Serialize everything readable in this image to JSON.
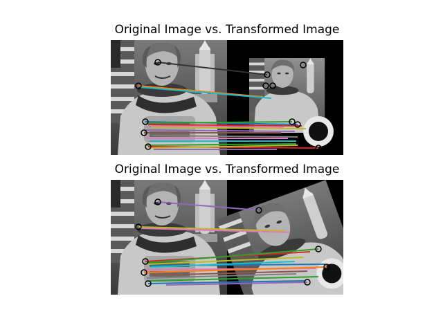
{
  "figure": {
    "panels": [
      {
        "title": "Original Image vs. Transformed Image",
        "transform": "scaled and shifted copy on black background"
      },
      {
        "title": "Original Image vs. Transformed Image",
        "transform": "rotated copy on black background"
      }
    ]
  },
  "colors": {
    "background": "#ffffff",
    "image_black": "#000000",
    "match_lines": [
      "#e377c2",
      "#bcbd22",
      "#17becf",
      "#1f77b4",
      "#2ca02c",
      "#d62728",
      "#9467bd",
      "#ff7f0e",
      "#8c564b",
      "#7f7f7f"
    ],
    "keypoint_circle": "#000000"
  }
}
